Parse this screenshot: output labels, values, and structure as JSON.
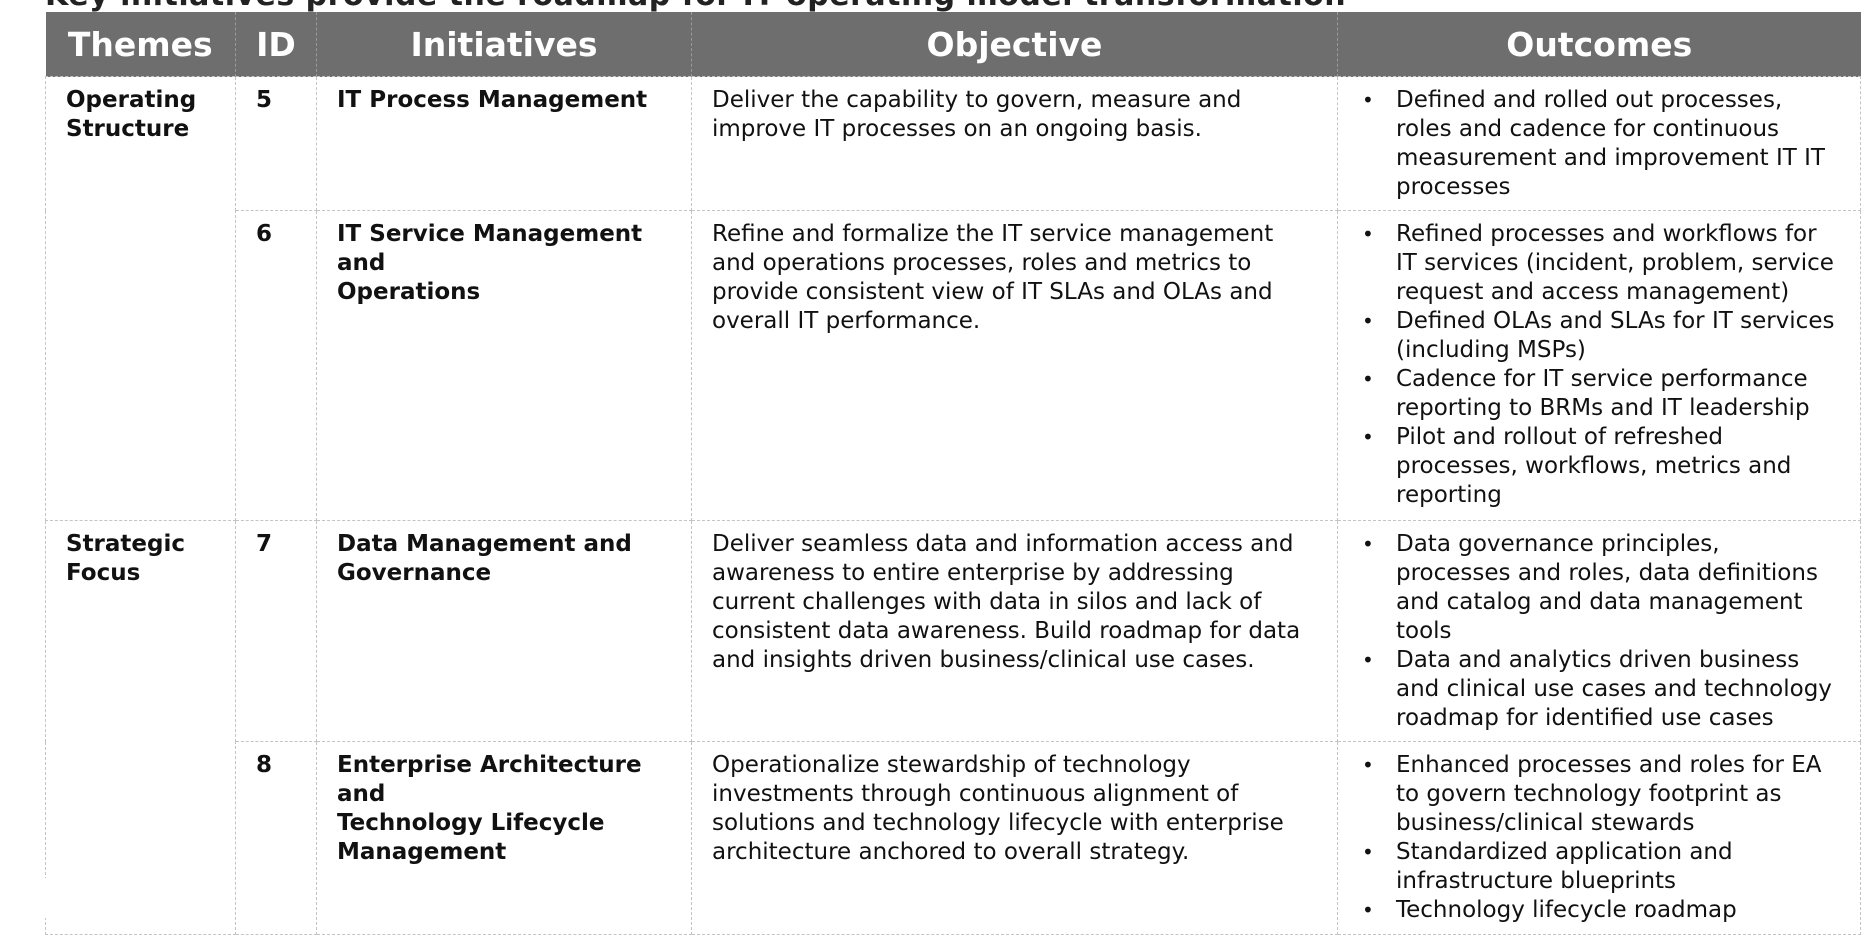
{
  "page": {
    "cut_title": "Key initiatives provide the roadmap for IT operating model transformation"
  },
  "header": {
    "themes": "Themes",
    "id": "ID",
    "initiatives": "Initiatives",
    "objective": "Objective",
    "outcomes": "Outcomes"
  },
  "themes": [
    {
      "label_lines": [
        "Operating",
        "Structure"
      ],
      "rows": [
        {
          "id": "5",
          "initiative_lines": [
            "IT Process Management"
          ],
          "objective": "Deliver the capability to govern, measure and improve IT processes on an ongoing basis.",
          "outcomes": [
            "Defined and rolled out processes, roles and cadence for continuous measurement and improvement IT IT processes"
          ]
        },
        {
          "id": "6",
          "initiative_lines": [
            "IT Service Management and",
            "Operations"
          ],
          "objective": "Refine and formalize the IT service management and operations processes, roles and metrics to provide consistent view of IT SLAs and OLAs and overall IT performance.",
          "outcomes": [
            "Refined processes and workflows for IT services (incident, problem, service request and access management)",
            "Defined OLAs and SLAs for IT services (including MSPs)",
            "Cadence for IT service performance reporting to BRMs and IT leadership",
            "Pilot and rollout of refreshed processes, workflows, metrics and reporting"
          ]
        }
      ]
    },
    {
      "label_lines": [
        "Strategic",
        "Focus"
      ],
      "rows": [
        {
          "id": "7",
          "initiative_lines": [
            "Data Management and",
            "Governance"
          ],
          "objective": "Deliver seamless data and information access and awareness to entire enterprise by addressing current challenges with data in silos and lack of consistent data awareness. Build roadmap for data and insights driven business/clinical use cases.",
          "outcomes": [
            "Data governance principles, processes and roles, data definitions and catalog and data management tools",
            "Data and analytics driven business and clinical use cases and technology roadmap for identified use cases"
          ]
        },
        {
          "id": "8",
          "initiative_lines": [
            "Enterprise Architecture and",
            "Technology Lifecycle",
            "Management"
          ],
          "objective": "Operationalize stewardship of technology investments through continuous alignment of solutions and technology lifecycle with enterprise architecture anchored to overall strategy.",
          "outcomes": [
            "Enhanced processes and roles for EA to govern technology footprint as business/clinical stewards",
            "Standardized application and infrastructure blueprints",
            "Technology lifecycle roadmap"
          ]
        }
      ]
    }
  ]
}
